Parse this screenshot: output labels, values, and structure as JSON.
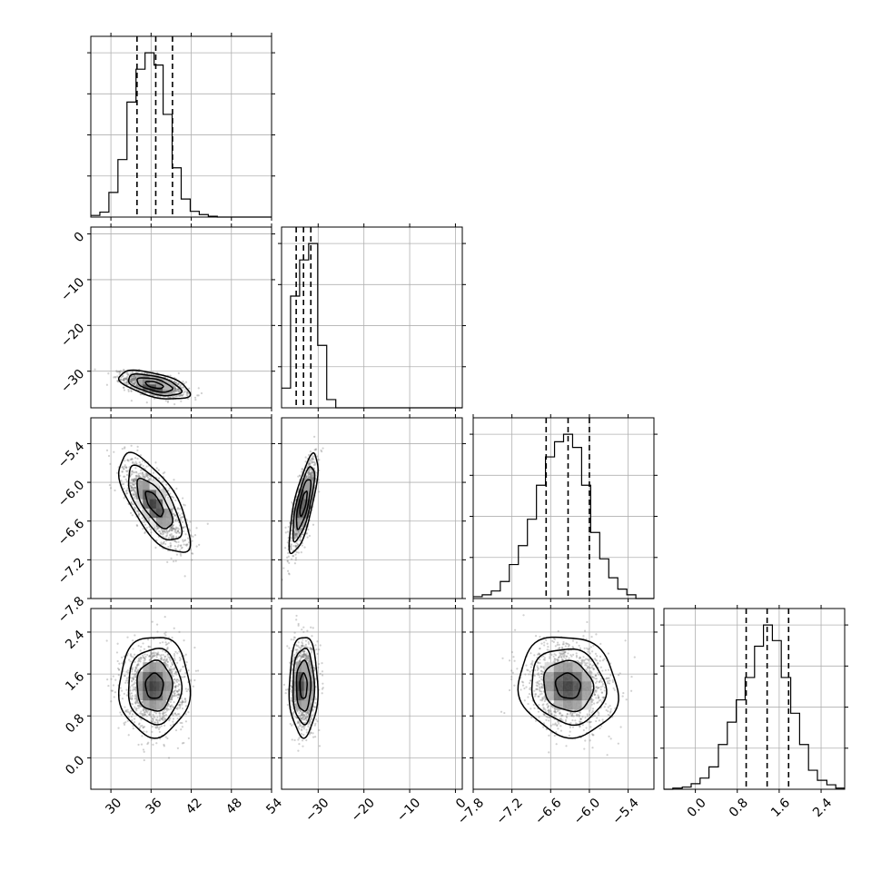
{
  "chart_data": {
    "type": "corner",
    "n_params": 4,
    "parameters": [
      {
        "id": "p1",
        "range": [
          27,
          54
        ],
        "ticks": [
          "30",
          "36",
          "42",
          "48",
          "54"
        ],
        "tick_values": [
          30,
          36,
          42,
          48,
          54
        ]
      },
      {
        "id": "p2",
        "range": [
          -38,
          1.5
        ],
        "ticks": [
          "0",
          "−10",
          "−20",
          "−30"
        ],
        "tick_values": [
          0,
          -10,
          -20,
          -30
        ]
      },
      {
        "id": "p3",
        "range": [
          -7.8,
          -5.0
        ],
        "ticks": [
          "−5.4",
          "−6.0",
          "−6.6",
          "−7.2",
          "−7.8"
        ],
        "tick_values": [
          -5.4,
          -6.0,
          -6.6,
          -7.2,
          -7.8
        ]
      },
      {
        "id": "p4",
        "range": [
          -0.6,
          2.85
        ],
        "ticks": [
          "0.0",
          "0.8",
          "1.6",
          "2.4"
        ],
        "tick_values": [
          0.0,
          0.8,
          1.6,
          2.4
        ]
      }
    ],
    "x_tick_labels": {
      "p1": [
        "30",
        "36",
        "42",
        "48",
        "54"
      ],
      "p2": [
        "−30",
        "−20",
        "−10",
        "0"
      ],
      "p3": [
        "−7.8",
        "−7.2",
        "−6.6",
        "−6.0",
        "−5.4"
      ],
      "p4": [
        "0.0",
        "0.8",
        "1.6",
        "2.4"
      ]
    },
    "y_tick_labels": {
      "row2": [
        "0",
        "−10",
        "−20",
        "−30"
      ],
      "row3": [
        "−5.4",
        "−6.0",
        "−6.6",
        "−7.2",
        "−7.8"
      ],
      "row4": [
        "2.4",
        "1.6",
        "0.8",
        "0.0"
      ]
    },
    "quantiles": {
      "p1": [
        33.9,
        36.7,
        39.2
      ],
      "p2": [
        -34.8,
        -33.2,
        -31.6
      ],
      "p3": [
        -6.67,
        -6.33,
        -6.0
      ],
      "p4": [
        0.97,
        1.37,
        1.78
      ]
    },
    "marginals": {
      "p1": {
        "bins": [
          27,
          28.35,
          29.7,
          31.05,
          32.4,
          33.75,
          35.1,
          36.45,
          37.8,
          39.15,
          40.5,
          41.85,
          43.2,
          44.55,
          45.9,
          47.25,
          48.6,
          49.95,
          51.3,
          52.65,
          54
        ],
        "counts": [
          2,
          6,
          30,
          70,
          140,
          180,
          200,
          185,
          125,
          60,
          22,
          7,
          3,
          1,
          0,
          0,
          0,
          0,
          0,
          0
        ]
      },
      "p2": {
        "bins": [
          -38,
          -36.03,
          -34.05,
          -32.08,
          -30.1,
          -28.13,
          -26.15,
          -24.18,
          -22.2,
          -20.23,
          -18.25,
          -16.28,
          -14.3,
          -12.33,
          -10.35,
          -8.38,
          -6.4,
          -4.43,
          -2.45,
          -0.48,
          1.5
        ],
        "counts": [
          12,
          68,
          90,
          100,
          38,
          5,
          0,
          0,
          0,
          0,
          0,
          0,
          0,
          0,
          0,
          0,
          0,
          0,
          0,
          0
        ]
      },
      "p3": {
        "bins": [
          -7.8,
          -7.66,
          -7.52,
          -7.38,
          -7.24,
          -7.1,
          -6.96,
          -6.82,
          -6.68,
          -6.54,
          -6.4,
          -6.26,
          -6.12,
          -5.98,
          -5.84,
          -5.7,
          -5.56,
          -5.42,
          -5.28,
          -5.14,
          -5.0
        ],
        "counts": [
          1,
          2,
          4,
          9,
          18,
          28,
          42,
          60,
          75,
          83,
          87,
          80,
          60,
          35,
          21,
          11,
          5,
          2,
          0,
          0
        ]
      },
      "p4": {
        "bins": [
          -0.6,
          -0.43,
          -0.25,
          -0.08,
          0.09,
          0.26,
          0.44,
          0.61,
          0.78,
          0.95,
          1.13,
          1.3,
          1.47,
          1.64,
          1.82,
          1.99,
          2.16,
          2.33,
          2.51,
          2.68,
          2.85
        ],
        "counts": [
          0,
          1,
          2,
          5,
          10,
          20,
          40,
          60,
          80,
          100,
          128,
          147,
          133,
          100,
          68,
          40,
          17,
          8,
          4,
          1
        ]
      }
    },
    "joint": {
      "p2_p1": {
        "center": [
          36.5,
          -33.0
        ],
        "sd": [
          2.2,
          1.3
        ],
        "rho": -0.55
      },
      "p3_p1": {
        "center": [
          36.5,
          -6.33
        ],
        "sd": [
          2.2,
          0.32
        ],
        "rho": -0.7
      },
      "p3_p2": {
        "center": [
          -33.2,
          -6.33
        ],
        "sd": [
          1.3,
          0.32
        ],
        "rho": 0.75
      },
      "p4_p1": {
        "center": [
          36.5,
          1.37
        ],
        "sd": [
          2.2,
          0.4
        ],
        "rho": 0.0
      },
      "p4_p2": {
        "center": [
          -33.2,
          1.37
        ],
        "sd": [
          1.3,
          0.4
        ],
        "rho": 0.0
      },
      "p4_p3": {
        "center": [
          -6.33,
          1.37
        ],
        "sd": [
          0.32,
          0.4
        ],
        "rho": -0.1
      }
    },
    "grid": true,
    "contour_levels_sigma": [
      0.5,
      1.0,
      1.5,
      2.0
    ]
  }
}
